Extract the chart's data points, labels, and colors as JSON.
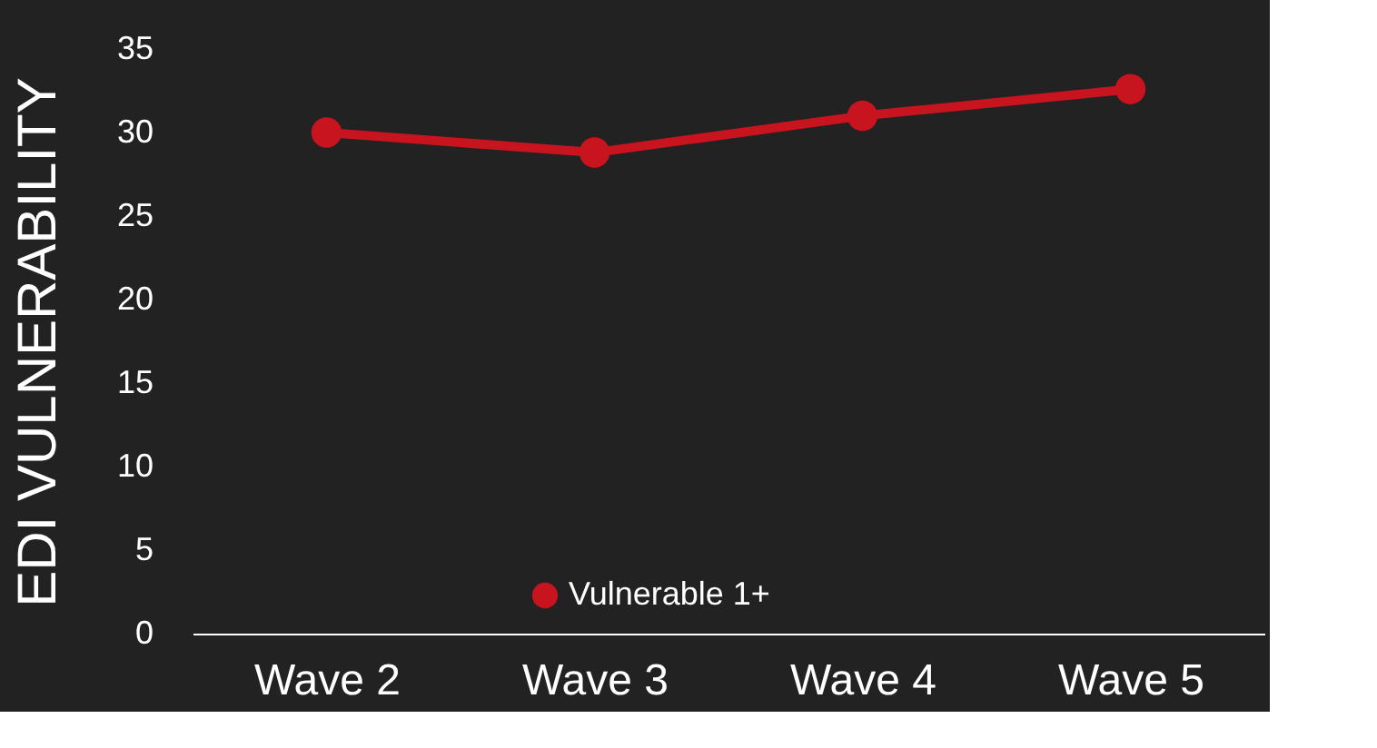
{
  "chart_data": {
    "type": "line",
    "ylabel": "EDI VULNERABILITY",
    "categories": [
      "Wave 2",
      "Wave 3",
      "Wave 4",
      "Wave 5"
    ],
    "series": [
      {
        "name": "Vulnerable 1+",
        "color": "#c8141e",
        "values": [
          30,
          28.8,
          31,
          32.6
        ]
      }
    ],
    "ylim": [
      0,
      35
    ],
    "yticks": [
      0,
      5,
      10,
      15,
      20,
      25,
      30,
      35
    ],
    "grid": false,
    "legend": "bottom",
    "marker": "circle",
    "line_style": "solid"
  }
}
